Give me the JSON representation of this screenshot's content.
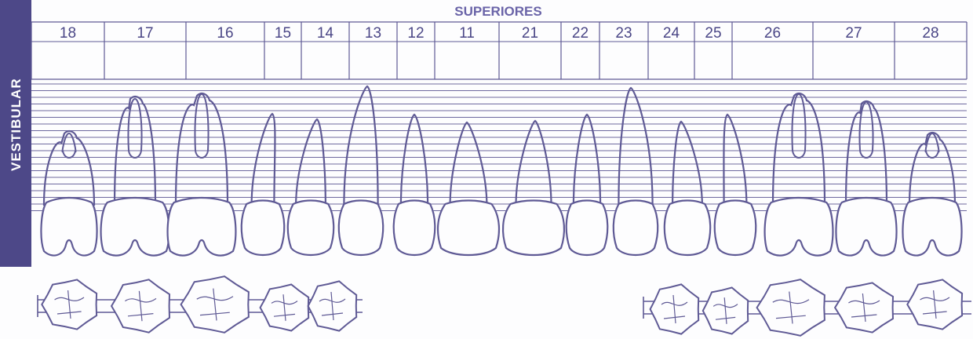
{
  "chart": {
    "title": "SUPERIORES",
    "side_label": "VESTIBULAR",
    "colors": {
      "line": "#5f5a95",
      "label_band": "#4d4888",
      "title": "#6a64a8",
      "numbers": "#4a4686"
    }
  },
  "teeth": [
    {
      "number": "18",
      "kind": "molar-third"
    },
    {
      "number": "17",
      "kind": "molar"
    },
    {
      "number": "16",
      "kind": "molar"
    },
    {
      "number": "15",
      "kind": "premolar"
    },
    {
      "number": "14",
      "kind": "premolar"
    },
    {
      "number": "13",
      "kind": "canine"
    },
    {
      "number": "12",
      "kind": "lateral-incisor"
    },
    {
      "number": "11",
      "kind": "central-incisor"
    },
    {
      "number": "21",
      "kind": "central-incisor"
    },
    {
      "number": "22",
      "kind": "lateral-incisor"
    },
    {
      "number": "23",
      "kind": "canine"
    },
    {
      "number": "24",
      "kind": "premolar"
    },
    {
      "number": "25",
      "kind": "premolar"
    },
    {
      "number": "26",
      "kind": "molar"
    },
    {
      "number": "27",
      "kind": "molar"
    },
    {
      "number": "28",
      "kind": "molar-third"
    }
  ]
}
